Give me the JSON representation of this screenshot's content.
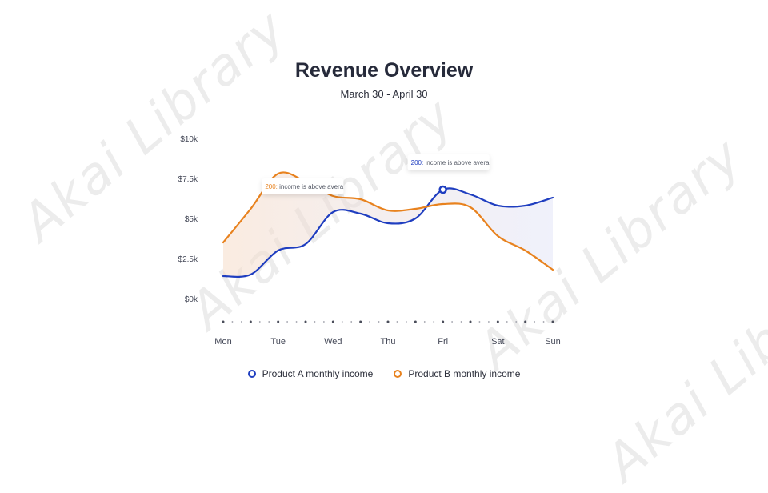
{
  "header": {
    "title": "Revenue Overview",
    "subtitle": "March 30 - April 30"
  },
  "watermark_text": "Akai Library",
  "colors": {
    "product_a": "#1f3ec0",
    "product_b": "#e8821e",
    "axis_text": "#444857",
    "tooltip_text": "#555a66"
  },
  "chart_data": {
    "type": "line",
    "title": "Revenue Overview",
    "subtitle": "March 30 - April 30",
    "categories": [
      "Mon",
      "Tue",
      "Wed",
      "Thu",
      "Fri",
      "Sat",
      "Sun"
    ],
    "y_ticks": [
      "$0k",
      "$2.5k",
      "$5k",
      "$7.5k",
      "$10k"
    ],
    "y_tick_values": [
      0,
      2500,
      5000,
      7500,
      10000
    ],
    "ylim": [
      0,
      10000
    ],
    "grid": false,
    "legend_position": "bottom",
    "series": [
      {
        "name": "Product A monthly income",
        "color": "#1f3ec0",
        "x": [
          0,
          0.5,
          1,
          1.5,
          2,
          2.5,
          3,
          3.5,
          4,
          4.5,
          5,
          5.5,
          6
        ],
        "values": [
          1400,
          1500,
          3000,
          3400,
          5400,
          5300,
          4700,
          5000,
          6800,
          6500,
          5800,
          5800,
          6300
        ]
      },
      {
        "name": "Product B monthly income",
        "color": "#e8821e",
        "x": [
          0,
          0.5,
          1,
          1.5,
          2,
          2.5,
          3,
          3.5,
          4,
          4.5,
          5,
          5.5,
          6
        ],
        "values": [
          3500,
          5600,
          7800,
          7300,
          6400,
          6200,
          5500,
          5600,
          5900,
          5700,
          3900,
          3000,
          1800
        ]
      }
    ],
    "annotations": [
      {
        "series": "Product B monthly income",
        "value": "200:",
        "text": "income is above avera",
        "at_x": 0.5
      },
      {
        "series": "Product A monthly income",
        "value": "200:",
        "text": "income is above avera",
        "at_x": 4
      }
    ],
    "highlight_point": {
      "series": "Product A monthly income",
      "x": 4,
      "y": 6800
    }
  },
  "legend": [
    {
      "label": "Product A monthly income",
      "color": "#1f3ec0"
    },
    {
      "label": "Product B monthly income",
      "color": "#e8821e"
    }
  ]
}
